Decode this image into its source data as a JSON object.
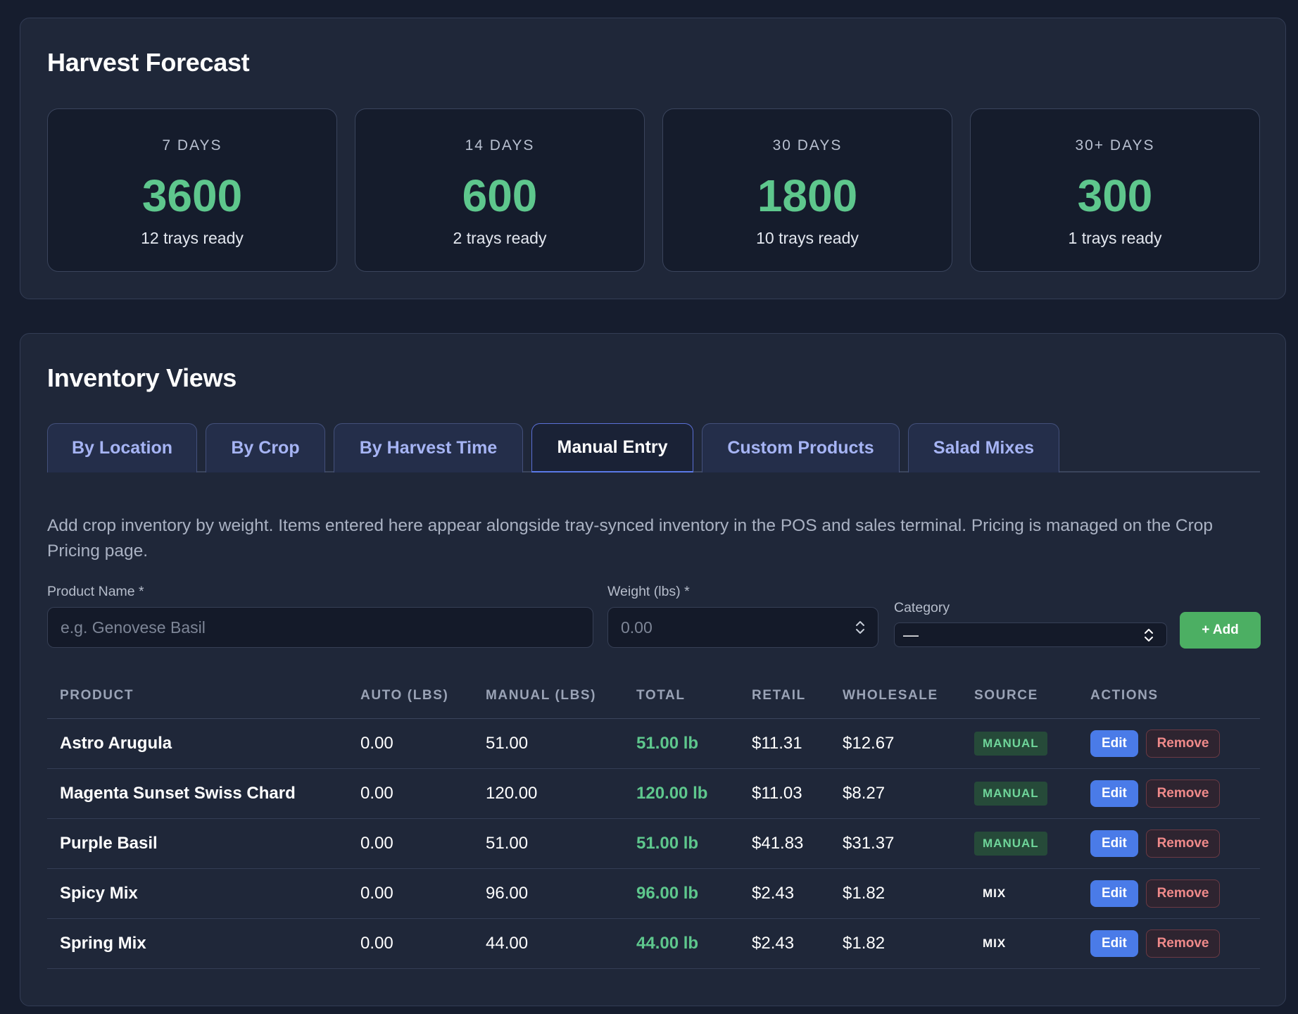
{
  "forecast": {
    "title": "Harvest Forecast",
    "cards": [
      {
        "label": "7 DAYS",
        "value": "3600",
        "sub": "12 trays ready"
      },
      {
        "label": "14 DAYS",
        "value": "600",
        "sub": "2 trays ready"
      },
      {
        "label": "30 DAYS",
        "value": "1800",
        "sub": "10 trays ready"
      },
      {
        "label": "30+ DAYS",
        "value": "300",
        "sub": "1 trays ready"
      }
    ]
  },
  "inventory": {
    "title": "Inventory Views",
    "tabs": [
      {
        "label": "By Location"
      },
      {
        "label": "By Crop"
      },
      {
        "label": "By Harvest Time"
      },
      {
        "label": "Manual Entry"
      },
      {
        "label": "Custom Products"
      },
      {
        "label": "Salad Mixes"
      }
    ],
    "active_tab": "Manual Entry",
    "description": "Add crop inventory by weight. Items entered here appear alongside tray-synced inventory in the POS and sales terminal. Pricing is managed on the Crop Pricing page.",
    "form": {
      "product_label": "Product Name *",
      "product_placeholder": "e.g. Genovese Basil",
      "weight_label": "Weight (lbs) *",
      "weight_placeholder": "0.00",
      "category_label": "Category",
      "category_value": "—",
      "add_label": "+ Add"
    },
    "table": {
      "headers": [
        "PRODUCT",
        "AUTO (LBS)",
        "MANUAL (LBS)",
        "TOTAL",
        "RETAIL",
        "WHOLESALE",
        "SOURCE",
        "ACTIONS"
      ],
      "rows": [
        {
          "product": "Astro Arugula",
          "auto": "0.00",
          "manual": "51.00",
          "total": "51.00 lb",
          "retail": "$11.31",
          "wholesale": "$12.67",
          "source": "MANUAL"
        },
        {
          "product": "Magenta Sunset Swiss Chard",
          "auto": "0.00",
          "manual": "120.00",
          "total": "120.00 lb",
          "retail": "$11.03",
          "wholesale": "$8.27",
          "source": "MANUAL"
        },
        {
          "product": "Purple Basil",
          "auto": "0.00",
          "manual": "51.00",
          "total": "51.00 lb",
          "retail": "$41.83",
          "wholesale": "$31.37",
          "source": "MANUAL"
        },
        {
          "product": "Spicy Mix",
          "auto": "0.00",
          "manual": "96.00",
          "total": "96.00 lb",
          "retail": "$2.43",
          "wholesale": "$1.82",
          "source": "MIX"
        },
        {
          "product": "Spring Mix",
          "auto": "0.00",
          "manual": "44.00",
          "total": "44.00 lb",
          "retail": "$2.43",
          "wholesale": "$1.82",
          "source": "MIX"
        }
      ],
      "edit_label": "Edit",
      "remove_label": "Remove"
    }
  }
}
